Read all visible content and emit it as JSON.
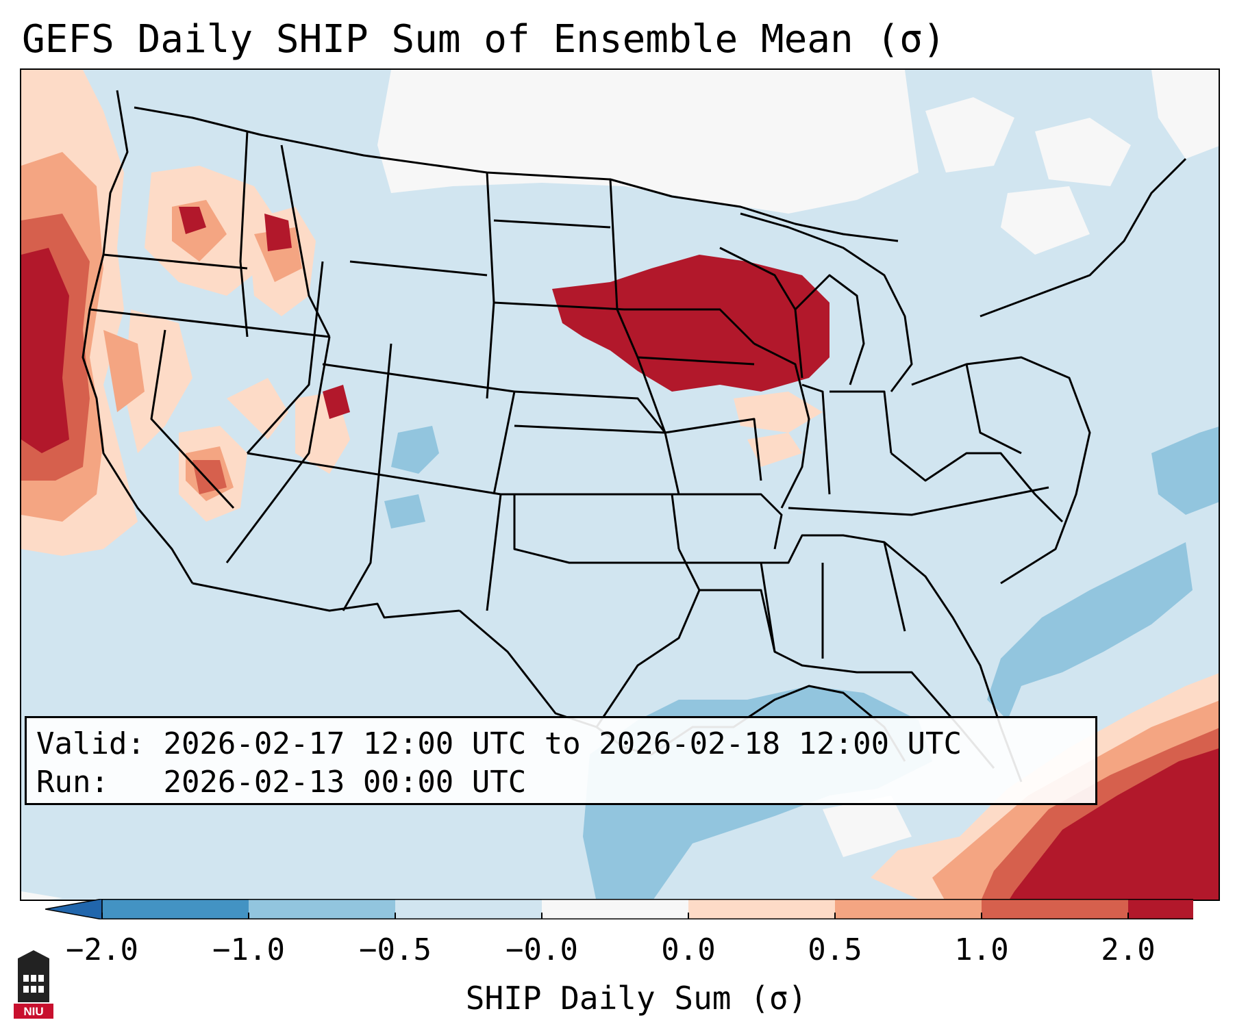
{
  "title": "GEFS Daily SHIP Sum of Ensemble Mean (σ)",
  "info": {
    "valid_label": "Valid:",
    "valid_value": "2026-02-17 12:00 UTC to 2026-02-18 12:00 UTC",
    "run_label": "Run:",
    "run_value": "2026-02-13 00:00 UTC"
  },
  "colorbar": {
    "label": "SHIP Daily Sum (σ)",
    "ticks": [
      "−2.0",
      "−1.0",
      "−0.5",
      "−0.0",
      "0.0",
      "0.5",
      "1.0",
      "2.0"
    ],
    "colors": [
      "#4393c3",
      "#92c5de",
      "#d1e5f0",
      "#f7f7f7",
      "#fddbc7",
      "#f4a582",
      "#d6604d",
      "#b2182b"
    ],
    "extend_low_color": "#2166ac",
    "extend_high_color": "#b2182b"
  },
  "logo": {
    "text": "NIU"
  }
}
